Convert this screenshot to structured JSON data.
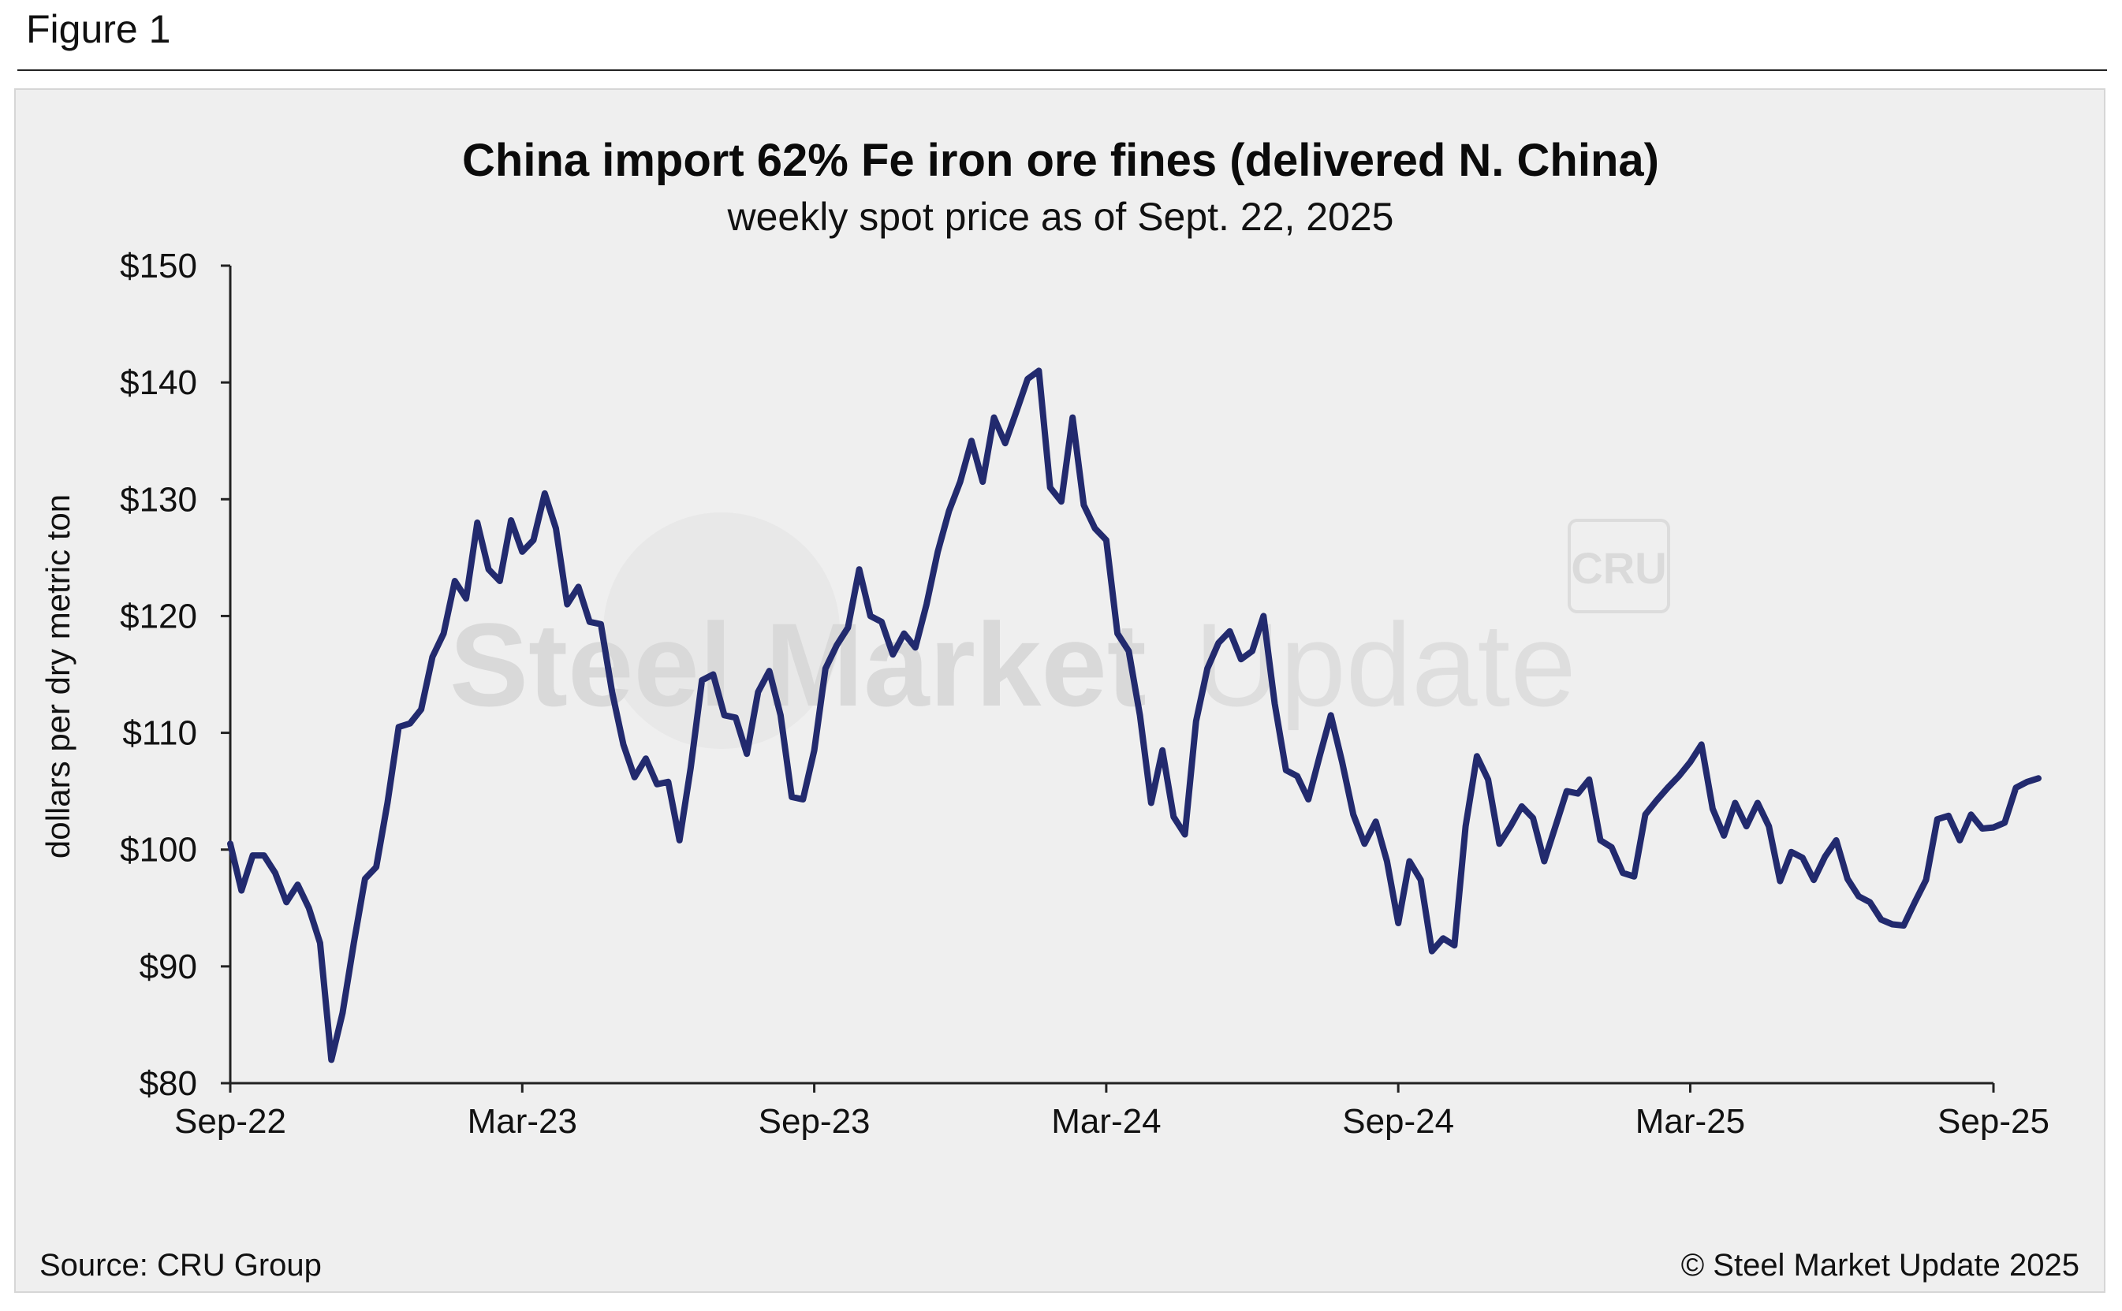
{
  "figure_label": "Figure 1",
  "source": "Source: CRU Group",
  "copyright": "© Steel Market Update 2025",
  "watermark": {
    "text_bold": "Steel Market",
    "text_light": "Update",
    "badge": "CRU"
  },
  "colors": {
    "line": "#222a6e",
    "panel": "#efefef",
    "axis": "#222222"
  },
  "chart_data": {
    "type": "line",
    "title": "China import 62% Fe iron ore fines (delivered N. China)",
    "subtitle": "weekly spot price as of Sept. 22, 2025",
    "ylabel": "dollars per dry metric ton",
    "xlabel": "",
    "ylim": [
      80,
      150
    ],
    "y_ticks": [
      80,
      90,
      100,
      110,
      120,
      130,
      140,
      150
    ],
    "y_tick_labels": [
      "$80",
      "$90",
      "$100",
      "$110",
      "$120",
      "$130",
      "$140",
      "$150"
    ],
    "x_range": [
      "2022-09-19",
      "2025-09-22"
    ],
    "x_ticks": [
      "2022-09-19",
      "2023-03-20",
      "2023-09-18",
      "2024-03-18",
      "2024-09-16",
      "2025-03-17",
      "2025-09-22"
    ],
    "x_tick_labels": [
      "Sep-22",
      "Mar-23",
      "Sep-23",
      "Mar-24",
      "Sep-24",
      "Mar-25",
      "Sep-25"
    ],
    "grid": false,
    "legend": "none",
    "series": [
      {
        "x_start": "2022-09-19",
        "frequency": "weekly",
        "values": [
          100.5,
          96.5,
          99.5,
          99.5,
          98.0,
          95.5,
          97.0,
          95.0,
          92.0,
          82.0,
          86.0,
          92.0,
          97.5,
          98.5,
          104.0,
          110.5,
          110.8,
          112.0,
          116.5,
          118.5,
          123.0,
          121.5,
          128.0,
          124.0,
          123.0,
          128.2,
          125.5,
          126.5,
          130.5,
          127.5,
          121.0,
          122.5,
          119.5,
          119.3,
          113.5,
          109.0,
          106.2,
          107.8,
          105.6,
          105.8,
          100.8,
          107.0,
          114.5,
          115.0,
          111.5,
          111.3,
          108.2,
          113.5,
          115.3,
          111.5,
          104.5,
          104.3,
          108.5,
          115.5,
          117.5,
          119.0,
          124.0,
          120.0,
          119.5,
          116.7,
          118.5,
          117.3,
          121.0,
          125.5,
          129.0,
          131.5,
          135.0,
          131.5,
          137.0,
          134.8,
          137.5,
          140.3,
          141.0,
          131.0,
          129.8,
          137.0,
          129.5,
          127.5,
          126.5,
          118.5,
          117.0,
          111.5,
          104.0,
          108.5,
          102.8,
          101.3,
          111.0,
          115.5,
          117.7,
          118.7,
          116.3,
          117.0,
          120.0,
          112.5,
          106.8,
          106.3,
          104.3,
          108.0,
          111.5,
          107.5,
          103.0,
          100.5,
          102.4,
          99.0,
          93.7,
          99.0,
          97.4,
          91.3,
          92.4,
          91.8,
          102.0,
          108.0,
          106.0,
          100.5,
          102.0,
          103.7,
          102.7,
          99.0,
          102.0,
          105.0,
          104.8,
          106.0,
          100.8,
          100.2,
          98.0,
          97.7,
          103.0,
          104.2,
          105.3,
          106.3,
          107.5,
          109.0,
          103.5,
          101.2,
          104.0,
          102.0,
          104.0,
          102.0,
          97.3,
          99.8,
          99.3,
          97.4,
          99.4,
          100.8,
          97.5,
          96.0,
          95.5,
          94.0,
          93.6,
          93.5,
          95.5,
          97.4,
          102.6,
          102.9,
          100.8,
          103.0,
          101.8,
          101.9,
          102.3,
          105.3,
          105.8,
          106.1
        ]
      }
    ]
  }
}
